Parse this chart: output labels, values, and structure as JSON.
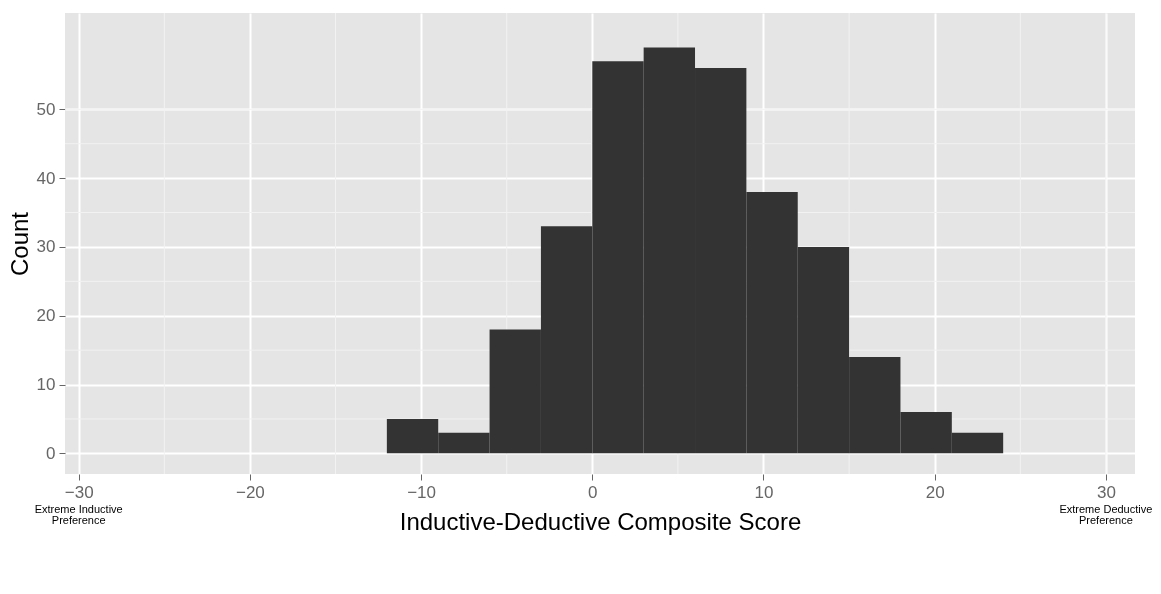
{
  "chart_data": {
    "type": "histogram",
    "xlabel": "Inductive-Deductive Composite Score",
    "ylabel": "Count",
    "bins": [
      -12,
      -9,
      -6,
      -3,
      0,
      3,
      6,
      9,
      12,
      15,
      18,
      21,
      24
    ],
    "values": [
      5,
      3,
      18,
      33,
      57,
      59,
      56,
      38,
      30,
      14,
      6,
      3
    ],
    "color": "#333333",
    "xlim": [
      -30.8,
      31.7
    ],
    "xticks": [
      -30,
      -20,
      -10,
      0,
      10,
      20,
      30
    ],
    "ylim": [
      -3,
      64
    ],
    "yticks": [
      0,
      10,
      20,
      30,
      40,
      50
    ],
    "grid": true,
    "annotations": [
      "Extreme Inductive Preference",
      "Extreme Deductive Preference"
    ]
  }
}
